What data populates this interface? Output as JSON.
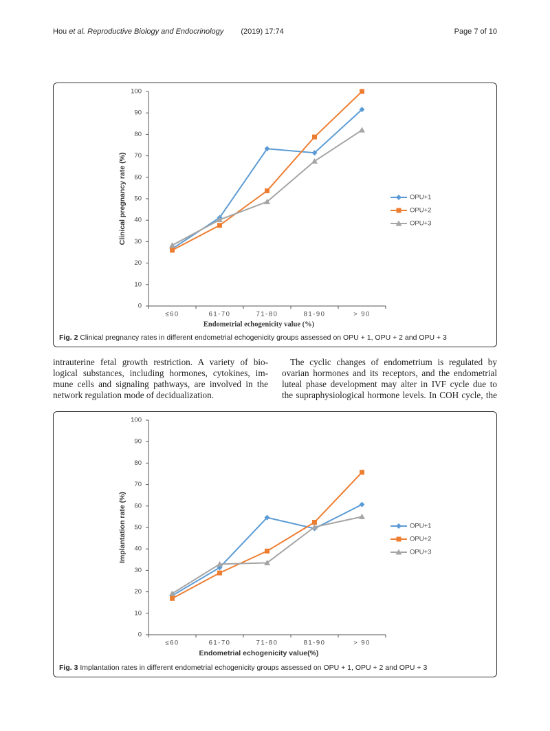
{
  "header": {
    "authors": "Hou",
    "etal": "et al.",
    "journal": "Reproductive Biology and Endocrinology",
    "citation": "(2019) 17:74",
    "page": "Page 7 of 10"
  },
  "chart_data": [
    {
      "type": "line",
      "y_label": "Clinical pregnancy rate (%)",
      "x_label": "Endometrial  echogenicity value (%)",
      "categories": [
        "≤60",
        "61-70",
        "71-80",
        "81-90",
        "> 90"
      ],
      "series": [
        {
          "name": "OPU+1",
          "color": "#5b9bd5",
          "marker": "diamond",
          "values": [
            26.7,
            41.2,
            73.3,
            71.4,
            91.6
          ]
        },
        {
          "name": "OPU+2",
          "color": "#ed7d31",
          "marker": "square",
          "values": [
            26,
            37.6,
            53.7,
            78.8,
            100
          ]
        },
        {
          "name": "OPU+3",
          "color": "#a5a5a5",
          "marker": "triangle",
          "values": [
            28.3,
            40.2,
            48.6,
            67.5,
            82
          ]
        }
      ],
      "ylim": [
        0,
        100
      ],
      "yticks": [
        0,
        10,
        20,
        30,
        40,
        50,
        60,
        70,
        80,
        90,
        100
      ],
      "grid": false,
      "legend": "right"
    },
    {
      "type": "line",
      "y_label": "Implantation rate (%)",
      "x_label": "Endometrial echogenicity value(%)",
      "categories": [
        "≤60",
        "61-70",
        "71-80",
        "81-90",
        "> 90"
      ],
      "series": [
        {
          "name": "OPU+1",
          "color": "#5b9bd5",
          "marker": "diamond",
          "values": [
            18.2,
            31.3,
            54.6,
            49.5,
            60.7
          ]
        },
        {
          "name": "OPU+2",
          "color": "#ed7d31",
          "marker": "square",
          "values": [
            16.9,
            28.8,
            39,
            52.4,
            75.7
          ]
        },
        {
          "name": "OPU+3",
          "color": "#a5a5a5",
          "marker": "triangle",
          "values": [
            19.2,
            32.9,
            33.5,
            50.2,
            55
          ]
        }
      ],
      "ylim": [
        0,
        100
      ],
      "yticks": [
        0,
        10,
        20,
        30,
        40,
        50,
        60,
        70,
        80,
        90,
        100
      ],
      "grid": false,
      "legend": "right"
    }
  ],
  "captions": [
    {
      "label": "Fig. 2",
      "text": "Clinical pregnancy rates in different endometrial echogenicity groups assessed on OPU + 1, OPU + 2 and OPU + 3"
    },
    {
      "label": "Fig. 3",
      "text": "Implantation rates in different endometrial echogenicity groups assessed on OPU + 1, OPU + 2 and OPU + 3"
    }
  ],
  "body": {
    "left": [
      "intrauterine fetal growth restriction. A variety of bio-",
      "logical substances, including hormones, cytokines, im-",
      "mune cells and signaling pathways, are involved in the",
      "network regulation mode of decidualization."
    ],
    "right": [
      "The cyclic changes of endometrium is regulated by",
      "ovarian hormones and its receptors, and the endometrial",
      "luteal phase development may alter in IVF cycle due to",
      "the supraphysiological hormone levels. In COH cycle, the"
    ]
  }
}
